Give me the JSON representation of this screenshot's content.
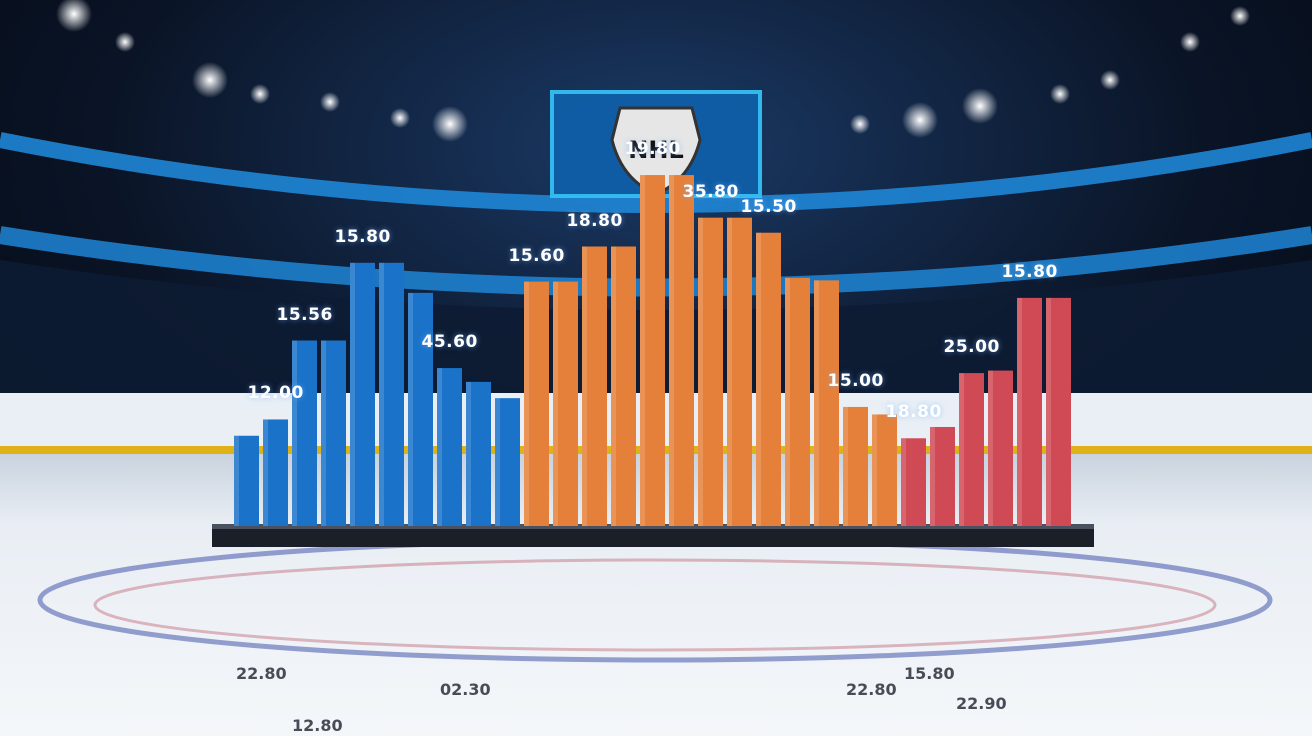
{
  "scene": {
    "logo_text": "NHL",
    "colors": {
      "arena_dark": "#070d1a",
      "arena_ring": "#1f86d6",
      "ice": "#e8eef5",
      "board_stripe": "#e0b21a",
      "series_blue": "#1a73c9",
      "series_orange": "#e5803a",
      "series_red": "#cf4a55"
    }
  },
  "chart_data": {
    "type": "bar",
    "title": "",
    "xlabel": "",
    "ylabel": "",
    "ylim": [
      0,
      30
    ],
    "grid": false,
    "legend": "none",
    "series": [
      {
        "color": "#1a73c9",
        "values": [
          7.2,
          8.5,
          14.8,
          14.8,
          21.0,
          21.0,
          18.6,
          12.6,
          11.5,
          10.2
        ]
      },
      {
        "color": "#e5803a",
        "values": [
          19.5,
          19.5,
          22.3,
          22.3,
          28.0,
          28.0,
          24.6,
          24.6,
          23.4,
          19.8,
          19.6,
          9.5,
          8.9
        ]
      },
      {
        "color": "#cf4a55",
        "values": [
          7.0,
          7.9,
          12.2,
          12.4,
          18.2,
          18.2
        ]
      }
    ],
    "value_labels": [
      {
        "text": "12.00",
        "bar": 1
      },
      {
        "text": "15.56",
        "bar": 2
      },
      {
        "text": "15.80",
        "bar": 4
      },
      {
        "text": "45.60",
        "bar": 7
      },
      {
        "text": "15.60",
        "bar": 10
      },
      {
        "text": "18.80",
        "bar": 12
      },
      {
        "text": "19.80",
        "bar": 14
      },
      {
        "text": "35.80",
        "bar": 16
      },
      {
        "text": "15.50",
        "bar": 18
      },
      {
        "text": "15.00",
        "bar": 21
      },
      {
        "text": "18.80",
        "bar": 23
      },
      {
        "text": "25.00",
        "bar": 25
      },
      {
        "text": "15.80",
        "bar": 27
      }
    ],
    "ice_labels": [
      "22.80",
      "02.30",
      "12.80",
      "22.80",
      "15.80",
      "22.90"
    ]
  }
}
